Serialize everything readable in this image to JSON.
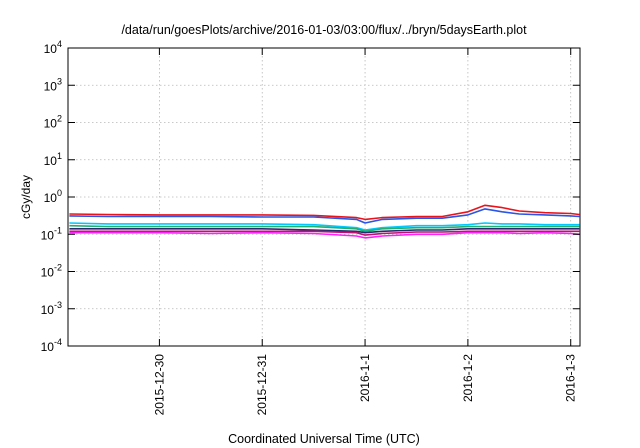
{
  "chart_data": {
    "type": "line",
    "title": "/data/run/goesPlots/archive/2016-01-03/03:00/flux/../bryn/5daysEarth.plot",
    "xlabel": "Coordinated Universal Time (UTC)",
    "ylabel": "cGy/day",
    "yscale": "log",
    "ylim": [
      0.0001,
      10000
    ],
    "xlim": [
      "2015-12-29T02:40",
      "2016-01-03T02:10"
    ],
    "grid": true,
    "legend": "none",
    "y_ticks": [
      {
        "value": 10000,
        "base": "10",
        "exp": "4"
      },
      {
        "value": 1000,
        "base": "10",
        "exp": "3"
      },
      {
        "value": 100,
        "base": "10",
        "exp": "2"
      },
      {
        "value": 10,
        "base": "10",
        "exp": "1"
      },
      {
        "value": 1,
        "base": "10",
        "exp": "0"
      },
      {
        "value": 0.1,
        "base": "10",
        "exp": "-1"
      },
      {
        "value": 0.01,
        "base": "10",
        "exp": "-2"
      },
      {
        "value": 0.001,
        "base": "10",
        "exp": "-3"
      },
      {
        "value": 0.0001,
        "base": "10",
        "exp": "-4"
      }
    ],
    "x_ticks": [
      {
        "date": "2015-12-30",
        "label": "2015-12-30"
      },
      {
        "date": "2015-12-31",
        "label": "2015-12-31"
      },
      {
        "date": "2016-01-01",
        "label": "2016-1-1"
      },
      {
        "date": "2016-01-02",
        "label": "2016-1-2"
      },
      {
        "date": "2016-01-03",
        "label": "2016-1-3"
      }
    ],
    "x": [
      "2015-12-29T03:00",
      "2015-12-29T12:00",
      "2015-12-30T00:00",
      "2015-12-30T12:00",
      "2015-12-31T00:00",
      "2015-12-31T12:00",
      "2015-12-31T22:00",
      "2016-01-01T00:00",
      "2016-01-01T04:00",
      "2016-01-01T12:00",
      "2016-01-01T18:00",
      "2016-01-02T00:00",
      "2016-01-02T04:00",
      "2016-01-02T08:00",
      "2016-01-02T12:00",
      "2016-01-02T18:00",
      "2016-01-03T00:00",
      "2016-01-03T02:00"
    ],
    "series": [
      {
        "color": "#e8141c",
        "values": [
          0.35,
          0.34,
          0.33,
          0.33,
          0.33,
          0.32,
          0.28,
          0.25,
          0.28,
          0.3,
          0.3,
          0.4,
          0.6,
          0.52,
          0.42,
          0.38,
          0.36,
          0.34
        ]
      },
      {
        "color": "#2a55e6",
        "values": [
          0.31,
          0.3,
          0.3,
          0.3,
          0.29,
          0.29,
          0.25,
          0.2,
          0.25,
          0.27,
          0.27,
          0.33,
          0.48,
          0.4,
          0.35,
          0.33,
          0.31,
          0.3
        ]
      },
      {
        "color": "#00c8ff",
        "values": [
          0.2,
          0.19,
          0.19,
          0.19,
          0.19,
          0.18,
          0.15,
          0.13,
          0.15,
          0.17,
          0.17,
          0.18,
          0.2,
          0.19,
          0.19,
          0.18,
          0.18,
          0.18
        ]
      },
      {
        "color": "#20b070",
        "values": [
          0.17,
          0.16,
          0.16,
          0.16,
          0.16,
          0.16,
          0.14,
          0.12,
          0.14,
          0.15,
          0.15,
          0.16,
          0.16,
          0.16,
          0.16,
          0.16,
          0.16,
          0.16
        ]
      },
      {
        "color": "#2a2a70",
        "values": [
          0.14,
          0.14,
          0.14,
          0.14,
          0.14,
          0.13,
          0.12,
          0.11,
          0.12,
          0.13,
          0.13,
          0.14,
          0.14,
          0.14,
          0.14,
          0.14,
          0.14,
          0.14
        ]
      },
      {
        "color": "#c01070",
        "values": [
          0.12,
          0.12,
          0.12,
          0.12,
          0.12,
          0.12,
          0.11,
          0.095,
          0.105,
          0.115,
          0.115,
          0.12,
          0.12,
          0.12,
          0.12,
          0.12,
          0.12,
          0.12
        ]
      },
      {
        "color": "#ff20ff",
        "values": [
          0.11,
          0.11,
          0.11,
          0.105,
          0.11,
          0.105,
          0.09,
          0.08,
          0.09,
          0.1,
          0.1,
          0.11,
          0.11,
          0.11,
          0.105,
          0.11,
          0.105,
          0.1
        ]
      }
    ]
  }
}
